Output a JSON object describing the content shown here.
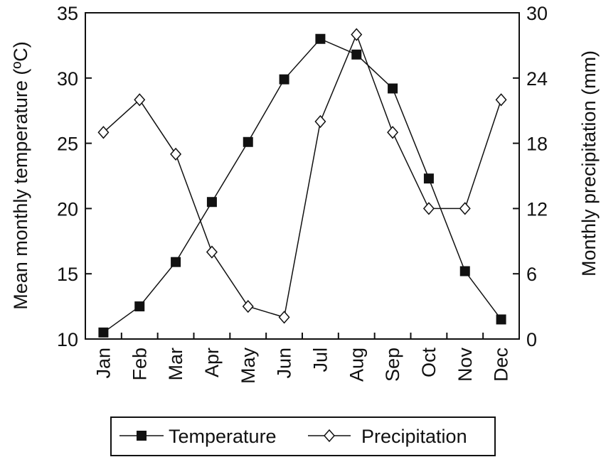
{
  "chart_data": {
    "type": "line",
    "categories": [
      "Jan",
      "Feb",
      "Mar",
      "Apr",
      "May",
      "Jun",
      "Jul",
      "Aug",
      "Sep",
      "Oct",
      "Nov",
      "Dec"
    ],
    "series": [
      {
        "name": "Temperature",
        "axis": "left",
        "marker": "filled-square",
        "values": [
          10.5,
          12.5,
          15.9,
          20.5,
          25.1,
          29.9,
          33.0,
          31.8,
          29.2,
          22.3,
          15.2,
          11.5
        ]
      },
      {
        "name": "Precipitation",
        "axis": "right",
        "marker": "open-diamond",
        "values": [
          19,
          22,
          17,
          8,
          3,
          2,
          20,
          28,
          19,
          12,
          12,
          22
        ]
      }
    ],
    "ylabel_left": "Mean monthly temperature (ºC)",
    "ylabel_right": "Monthly precipitation (mm)",
    "ylim_left": [
      10,
      35
    ],
    "ylim_right": [
      0,
      30
    ],
    "yticks_left": [
      10,
      15,
      20,
      25,
      30,
      35
    ],
    "yticks_right": [
      0,
      6,
      12,
      18,
      24,
      30
    ],
    "grid": false,
    "legend_position": "bottom",
    "colors": {
      "line": "#111111",
      "marker_fill": "#111111",
      "background": "#ffffff"
    }
  }
}
